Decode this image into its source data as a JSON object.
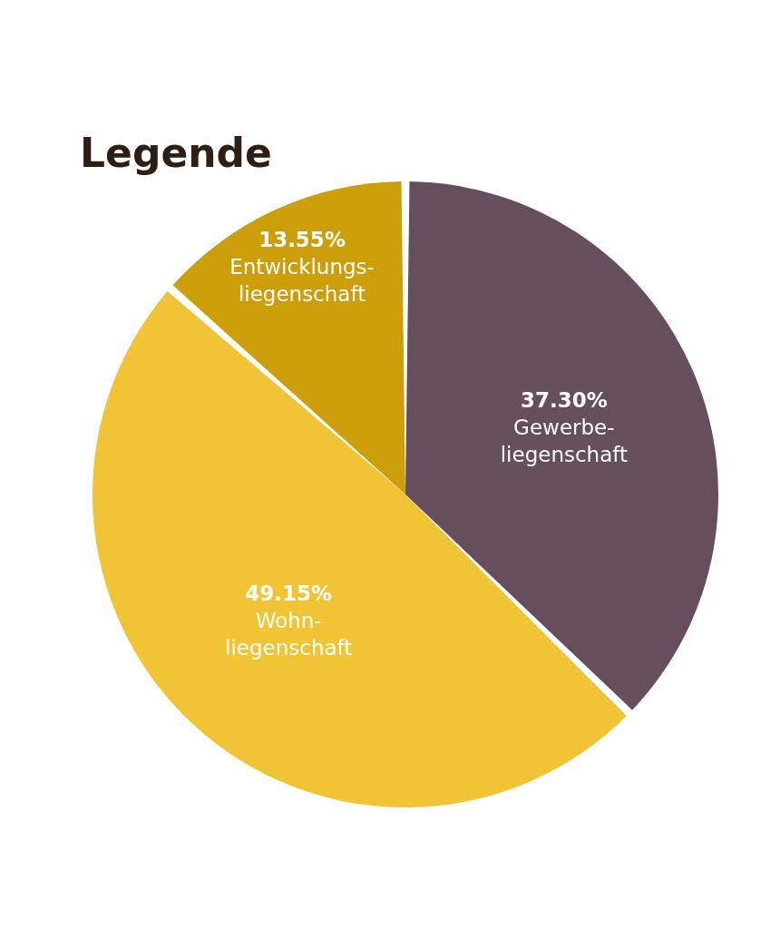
{
  "chart_data": {
    "type": "pie",
    "title": "Legende",
    "categories": [
      "Gewerbe-\nliegenschaft",
      "Wohn-\nliegenschaft",
      "Entwicklungs-\nliegenschaft"
    ],
    "values": [
      37.3,
      49.15,
      13.55
    ],
    "colors": [
      "#654f5c",
      "#f0c434",
      "#cc9e0a"
    ],
    "value_labels": [
      "37.30%",
      "49.15%",
      "13.55%"
    ]
  }
}
